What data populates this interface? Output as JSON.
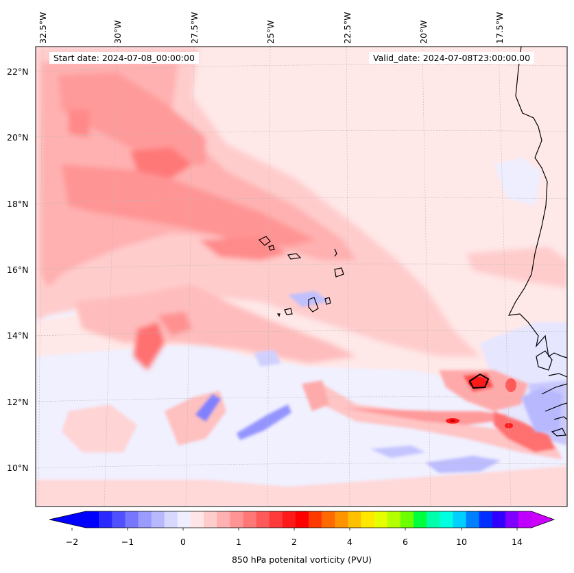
{
  "map": {
    "start_date_text": "Start date: 2024-07-08_00:00:00",
    "valid_date_text": "Valid_date: 2024-07-08T23:00:00.00",
    "longitude_labels": [
      "32.5°W",
      "30°W",
      "27.5°W",
      "25°W",
      "22.5°W",
      "20°W",
      "17.5°W"
    ],
    "latitude_labels": [
      "22°N",
      "20°N",
      "18°N",
      "16°N",
      "14°N",
      "12°N",
      "10°N"
    ],
    "field": "850 hPa potenital vorticity",
    "units": "PVU",
    "features": [
      "Cabo Verde islands",
      "West African coastline"
    ]
  },
  "colorbar": {
    "label": "850 hPa potenital vorticity (PVU)",
    "tick_labels": [
      "−2",
      "−1",
      "0",
      "1",
      "2",
      "4",
      "6",
      "10",
      "14"
    ],
    "colors": [
      "#0000ff",
      "#2a2aff",
      "#5050ff",
      "#7676ff",
      "#9a9aff",
      "#b8b8ff",
      "#d8d8ff",
      "#eeeeff",
      "#ffe6e6",
      "#ffcccc",
      "#ffb0b0",
      "#ff9494",
      "#ff7878",
      "#ff5a5a",
      "#ff3a3a",
      "#ff1a1a",
      "#ff0000",
      "#ff3a00",
      "#ff6a00",
      "#ff9400",
      "#ffc000",
      "#ffe800",
      "#e6ff00",
      "#b4ff00",
      "#6cff00",
      "#00ff3c",
      "#00ffaa",
      "#00ffe0",
      "#00d0ff",
      "#0080ff",
      "#0030ff",
      "#3000ff",
      "#8000ff",
      "#c000ff"
    ],
    "extend_min_color": "#0000ff",
    "extend_max_color": "#cc00ff"
  }
}
